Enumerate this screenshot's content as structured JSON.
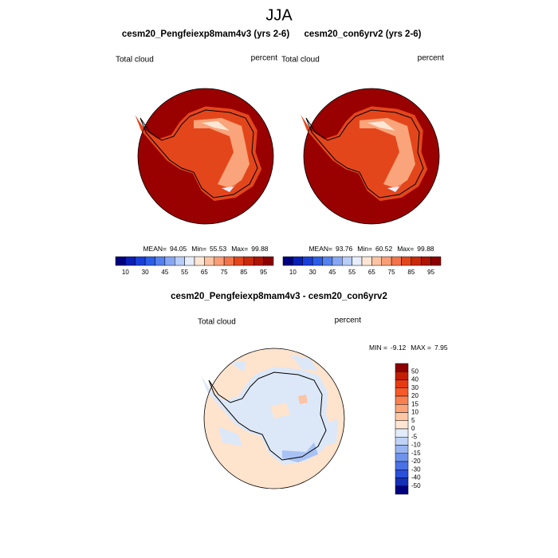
{
  "title": "JJA",
  "panels": [
    {
      "title": "cesm20_Pengfeiexp8mam4v3 (yrs 2-6)",
      "variable": "Total cloud",
      "units": "percent",
      "stats": [
        {
          "label": "MEAN=",
          "value": 94.05
        },
        {
          "label": "Min=",
          "value": 55.53
        },
        {
          "label": "Max=",
          "value": 99.88
        }
      ]
    },
    {
      "title": "cesm20_con6yrv2 (yrs 2-6)",
      "variable": "Total cloud",
      "units": "percent",
      "stats": [
        {
          "label": "MEAN=",
          "value": 93.76
        },
        {
          "label": "Min=",
          "value": 60.52
        },
        {
          "label": "Max=",
          "value": 99.88
        }
      ]
    }
  ],
  "panel_colorbar": {
    "labels": [
      10,
      30,
      45,
      55,
      65,
      75,
      85,
      95
    ],
    "colors": [
      "#00007f",
      "#0a1fb4",
      "#1a3fd8",
      "#2c5ee8",
      "#5581ee",
      "#86a7f3",
      "#b8cdf8",
      "#e6eefc",
      "#fde6d4",
      "#fcc4a4",
      "#f99d74",
      "#f3744a",
      "#e4461c",
      "#c92a0a",
      "#ad1402",
      "#8b0000"
    ]
  },
  "difference": {
    "title": "cesm20_Pengfeiexp8mam4v3 - cesm20_con6yrv2",
    "variable": "Total cloud",
    "units": "percent",
    "stats": [
      {
        "label": "MIN =",
        "value": -9.12
      },
      {
        "label": "MAX =",
        "value": 7.95
      }
    ],
    "colorbar": {
      "labels": [
        50,
        40,
        30,
        20,
        15,
        10,
        5,
        0,
        -5,
        -10,
        -15,
        -20,
        -30,
        -40,
        -50
      ],
      "colors": [
        "#8b0000",
        "#c21e04",
        "#e63b12",
        "#f65a2a",
        "#f98050",
        "#fba47a",
        "#fdc7a6",
        "#fee6d2",
        "#e2ecfb",
        "#c0d3f7",
        "#98b5f2",
        "#6e93ec",
        "#4a72e6",
        "#2a4fd8",
        "#1430b4",
        "#00007f"
      ]
    }
  }
}
